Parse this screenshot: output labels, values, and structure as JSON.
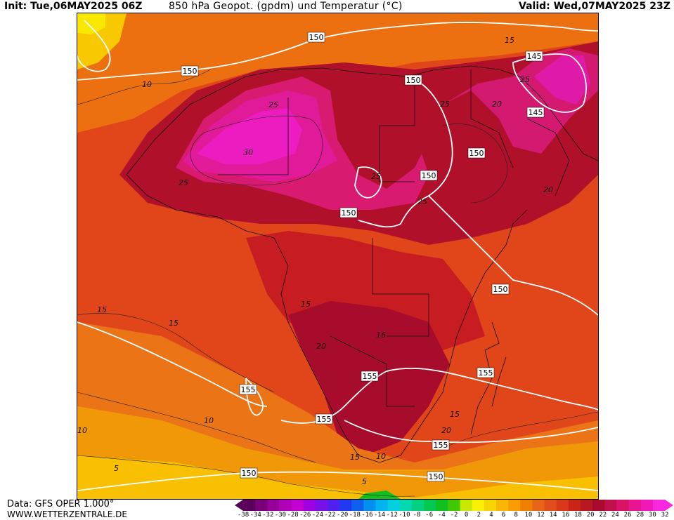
{
  "header": {
    "init": "Init: Tue,06MAY2025 06Z",
    "title": "850 hPa Geopot. (gpdm) und Temperatur (°C)",
    "valid": "Valid: Wed,07MAY2025 23Z"
  },
  "footer": {
    "data_source": "Data: GFS OPER 1.000°",
    "website": "WWW.WETTERZENTRALE.DE"
  },
  "geopotential_labels": [
    "150",
    "150",
    "150",
    "150",
    "150",
    "150",
    "150",
    "150",
    "145",
    "145",
    "155",
    "155",
    "155",
    "155",
    "155",
    "150",
    "150"
  ],
  "temperature_labels": [
    "10",
    "25",
    "30",
    "25",
    "25",
    "25",
    "25",
    "20",
    "25",
    "20",
    "20",
    "15",
    "15",
    "20",
    "16",
    "15",
    "10",
    "10",
    "15",
    "10",
    "15",
    "5",
    "5",
    "15"
  ],
  "colorbar": {
    "labels": [
      "-38",
      "-34",
      "-32",
      "-30",
      "-28",
      "-26",
      "-24",
      "-22",
      "-20",
      "-18",
      "-16",
      "-14",
      "-12",
      "-10",
      "-8",
      "-6",
      "-4",
      "-2",
      "0",
      "2",
      "4",
      "6",
      "8",
      "10",
      "12",
      "14",
      "16",
      "18",
      "20",
      "22",
      "24",
      "26",
      "28",
      "30",
      "32"
    ],
    "colors": [
      "#5a005a",
      "#7a007a",
      "#98009a",
      "#b000b8",
      "#c400d0",
      "#a000e0",
      "#7a10e8",
      "#5020f0",
      "#2038f0",
      "#1060f0",
      "#0090f0",
      "#00b4f0",
      "#00d0e0",
      "#00d8b0",
      "#00d080",
      "#00c850",
      "#10c020",
      "#40c800",
      "#c8e800",
      "#f8f000",
      "#f8d400",
      "#f8b800",
      "#f89c00",
      "#f08000",
      "#e86418",
      "#e04e1c",
      "#d83818",
      "#c82418",
      "#b81820",
      "#a80a30",
      "#c0104c",
      "#d81468",
      "#e81490",
      "#f018b8",
      "#f828e0"
    ]
  }
}
